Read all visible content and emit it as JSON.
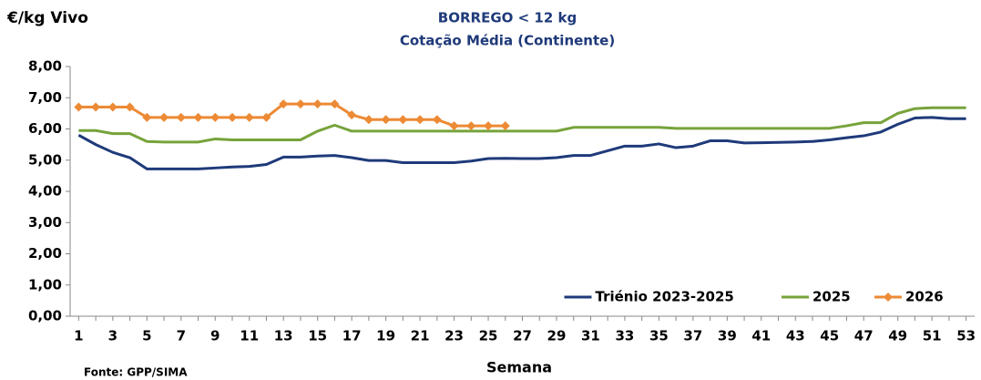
{
  "chart_data": {
    "type": "line",
    "title": "BORREGO < 12 kg",
    "subtitle": "Cotação Média (Continente)",
    "y_label": "€/kg Vivo",
    "x_label": "Semana",
    "source": "Fonte: GPP/SIMA",
    "x": [
      1,
      2,
      3,
      4,
      5,
      6,
      7,
      8,
      9,
      10,
      11,
      12,
      13,
      14,
      15,
      16,
      17,
      18,
      19,
      20,
      21,
      22,
      23,
      24,
      25,
      26,
      27,
      28,
      29,
      30,
      31,
      32,
      33,
      34,
      35,
      36,
      37,
      38,
      39,
      40,
      41,
      42,
      43,
      44,
      45,
      46,
      47,
      48,
      49,
      50,
      51,
      52,
      53
    ],
    "xlim": [
      0.5,
      53.5
    ],
    "xticks": [
      1,
      3,
      5,
      7,
      9,
      11,
      13,
      15,
      17,
      19,
      21,
      23,
      25,
      27,
      29,
      31,
      33,
      35,
      37,
      39,
      41,
      43,
      45,
      47,
      49,
      51,
      53
    ],
    "ylim": [
      0,
      8
    ],
    "yticks": [
      {
        "value": 0,
        "label": "0,00"
      },
      {
        "value": 1,
        "label": "1,00"
      },
      {
        "value": 2,
        "label": "2,00"
      },
      {
        "value": 3,
        "label": "3,00"
      },
      {
        "value": 4,
        "label": "4,00"
      },
      {
        "value": 5,
        "label": "5,00"
      },
      {
        "value": 6,
        "label": "6,00"
      },
      {
        "value": 7,
        "label": "7,00"
      },
      {
        "value": 8,
        "label": "8,00"
      }
    ],
    "grid": false,
    "legend": "bottom-right",
    "series": [
      {
        "name": "Triénio 2023-2025",
        "color": "#1f3a7a",
        "marker": "none",
        "values": [
          5.8,
          5.5,
          5.25,
          5.08,
          4.72,
          4.72,
          4.72,
          4.72,
          4.75,
          4.78,
          4.8,
          4.86,
          5.1,
          5.1,
          5.13,
          5.15,
          5.08,
          4.99,
          4.99,
          4.92,
          4.92,
          4.92,
          4.92,
          4.97,
          5.05,
          5.06,
          5.05,
          5.05,
          5.08,
          5.15,
          5.15,
          5.3,
          5.45,
          5.45,
          5.52,
          5.4,
          5.45,
          5.62,
          5.62,
          5.55,
          5.56,
          5.57,
          5.58,
          5.6,
          5.65,
          5.72,
          5.78,
          5.9,
          6.15,
          6.35,
          6.37,
          6.33,
          6.33
        ]
      },
      {
        "name": "2025",
        "color": "#77a33b",
        "marker": "none",
        "values": [
          5.95,
          5.95,
          5.85,
          5.85,
          5.6,
          5.58,
          5.58,
          5.58,
          5.68,
          5.65,
          5.65,
          5.65,
          5.65,
          5.65,
          5.93,
          6.12,
          5.93,
          5.93,
          5.93,
          5.93,
          5.93,
          5.93,
          5.93,
          5.93,
          5.93,
          5.93,
          5.93,
          5.93,
          5.93,
          6.05,
          6.05,
          6.05,
          6.05,
          6.05,
          6.05,
          6.02,
          6.02,
          6.02,
          6.02,
          6.02,
          6.02,
          6.02,
          6.02,
          6.02,
          6.02,
          6.1,
          6.2,
          6.2,
          6.5,
          6.65,
          6.68,
          6.68,
          6.68
        ]
      },
      {
        "name": "2026",
        "color": "#ed8a35",
        "marker": "diamond",
        "values": [
          6.7,
          6.7,
          6.7,
          6.7,
          6.37,
          6.37,
          6.37,
          6.37,
          6.37,
          6.37,
          6.37,
          6.37,
          6.8,
          6.8,
          6.8,
          6.8,
          6.45,
          6.3,
          6.3,
          6.3,
          6.3,
          6.3,
          6.1,
          6.1,
          6.1,
          6.1,
          null,
          null,
          null,
          null,
          null,
          null,
          null,
          null,
          null,
          null,
          null,
          null,
          null,
          null,
          null,
          null,
          null,
          null,
          null,
          null,
          null,
          null,
          null,
          null,
          null,
          null,
          null
        ]
      }
    ]
  }
}
